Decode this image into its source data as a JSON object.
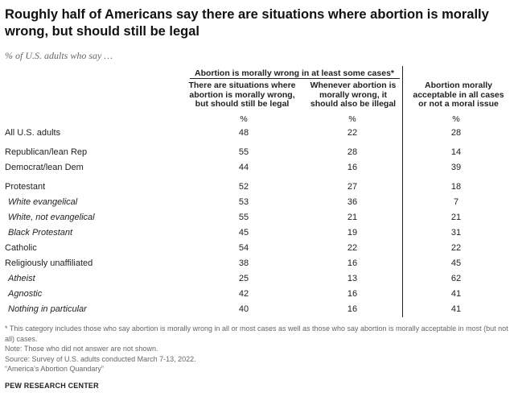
{
  "title": "Roughly half of Americans say there are situations where abortion is morally wrong, but should still be legal",
  "subtitle": "% of U.S. adults who say …",
  "group_header": "Abortion is morally wrong in at least some cases*",
  "columns": [
    "There are situations where abortion is morally wrong, but should still be legal",
    "Whenever abortion is morally wrong, it should also be illegal",
    "Abortion morally acceptable in all cases or not a moral issue"
  ],
  "unit_label": "%",
  "rows": [
    {
      "label": "All U.S. adults",
      "values": [
        "48",
        "22",
        "28"
      ]
    },
    {
      "label": "Republican/lean Rep",
      "values": [
        "55",
        "28",
        "14"
      ]
    },
    {
      "label": "Democrat/lean Dem",
      "values": [
        "44",
        "16",
        "39"
      ]
    },
    {
      "label": "Protestant",
      "values": [
        "52",
        "27",
        "18"
      ]
    },
    {
      "label": "White evangelical",
      "values": [
        "53",
        "36",
        "7"
      ]
    },
    {
      "label": "White, not evangelical",
      "values": [
        "55",
        "21",
        "21"
      ]
    },
    {
      "label": "Black Protestant",
      "values": [
        "45",
        "19",
        "31"
      ]
    },
    {
      "label": "Catholic",
      "values": [
        "54",
        "22",
        "22"
      ]
    },
    {
      "label": "Religiously unaffiliated",
      "values": [
        "38",
        "16",
        "45"
      ]
    },
    {
      "label": "Atheist",
      "values": [
        "25",
        "13",
        "62"
      ]
    },
    {
      "label": "Agnostic",
      "values": [
        "42",
        "16",
        "41"
      ]
    },
    {
      "label": "Nothing in particular",
      "values": [
        "40",
        "16",
        "41"
      ]
    }
  ],
  "footnotes": {
    "asterisk": "* This category includes those who say abortion is morally wrong in all or most cases as well as those who say abortion is morally acceptable in most (but not all) cases.",
    "note": "Note: Those who did not answer are not shown.",
    "source": "Source: Survey of U.S. adults conducted March 7-13, 2022.",
    "report": "“America’s Abortion Quandary”"
  },
  "source_org": "PEW RESEARCH CENTER"
}
